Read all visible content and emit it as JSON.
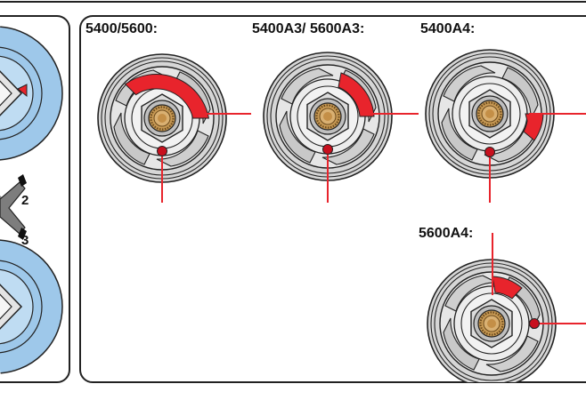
{
  "colors": {
    "accent": "#e8242c",
    "blue_disc": "#9ec8ea",
    "metal": "#d9d9d9",
    "brass": "#c8a060",
    "outline": "#222222"
  },
  "left_panel": {
    "callouts": [
      "2",
      "3"
    ]
  },
  "right_panel": {
    "labels": {
      "v1": "5400/5600:",
      "v2": "5400A3/ 5600A3:",
      "v3": "5400A4:",
      "v4": "5600A4:"
    }
  }
}
